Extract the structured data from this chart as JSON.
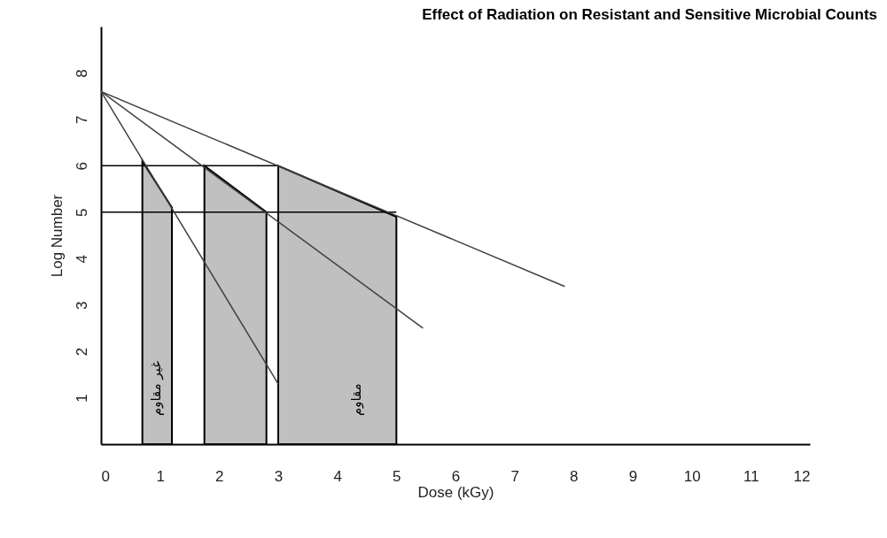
{
  "chart_data": {
    "type": "line",
    "title": "Effect of Radiation on Resistant and Sensitive Microbial Counts",
    "xlabel": "Dose (kGy)",
    "ylabel": "Log Number",
    "xlim": [
      0,
      12
    ],
    "xticks": [
      0,
      1,
      2,
      3,
      4,
      5,
      6,
      7,
      8,
      9,
      10,
      11,
      12
    ],
    "ylim": [
      0,
      9
    ],
    "yticks": [
      1,
      2,
      3,
      4,
      5,
      6,
      7,
      8
    ],
    "series": [
      {
        "type": "area",
        "color": "#c0c0c0",
        "x": [
          0.7,
          1.2
        ],
        "values": [
          6.1,
          5.1
        ]
      },
      {
        "type": "area",
        "color": "#c0c0c0",
        "x": [
          1.75,
          2.8
        ],
        "values": [
          6,
          5
        ]
      },
      {
        "type": "area",
        "color": "#c0c0c0",
        "x": [
          3,
          5
        ],
        "values": [
          6,
          4.9
        ]
      },
      {
        "color": "#000000",
        "x": [
          0,
          3
        ],
        "values": [
          6,
          6
        ]
      },
      {
        "color": "#000000",
        "x": [
          0,
          5
        ],
        "values": [
          5,
          5
        ]
      },
      {
        "color": "#404040",
        "x": [
          0,
          3
        ],
        "values": [
          7.6,
          1.3
        ]
      },
      {
        "color": "#404040",
        "x": [
          0,
          5.45
        ],
        "values": [
          7.6,
          2.5
        ]
      },
      {
        "color": "#404040",
        "x": [
          0,
          7.85
        ],
        "values": [
          7.6,
          3.4
        ]
      }
    ],
    "annotations": [
      "غير مقاوم",
      "مقاوم"
    ]
  }
}
